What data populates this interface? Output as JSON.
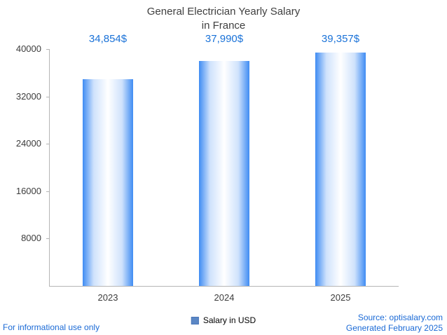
{
  "title": {
    "line1": "General Electrician Yearly Salary",
    "line2": "in France"
  },
  "chart_data": {
    "type": "bar",
    "title": "General Electrician Yearly Salary in France",
    "categories": [
      "2023",
      "2024",
      "2025"
    ],
    "series": [
      {
        "name": "Salary in USD",
        "values": [
          34854,
          37990,
          39357
        ]
      }
    ],
    "value_labels": [
      "34,854$",
      "37,990$",
      "39,357$"
    ],
    "ylim": [
      0,
      40000
    ],
    "yticks": [
      8000,
      16000,
      24000,
      32000,
      40000
    ],
    "grid": false,
    "legend": {
      "label": "Salary in USD",
      "position": "bottom"
    }
  },
  "footer": {
    "left": "For informational use only",
    "source": "Source: optisalary.com",
    "generated": "Generated February 2025"
  },
  "colors": {
    "value_label": "#1a72d8",
    "footer_text": "#1b6ad6",
    "title_text": "#3f3f3f",
    "axis_line": "#b5b5b5",
    "tick_text": "#3c3c3c",
    "bar_edge": "#3f8cf3",
    "bar_light": "#cfe2fc",
    "bar_mid": "#ffffff",
    "legend_swatch": "#5b87c5"
  }
}
